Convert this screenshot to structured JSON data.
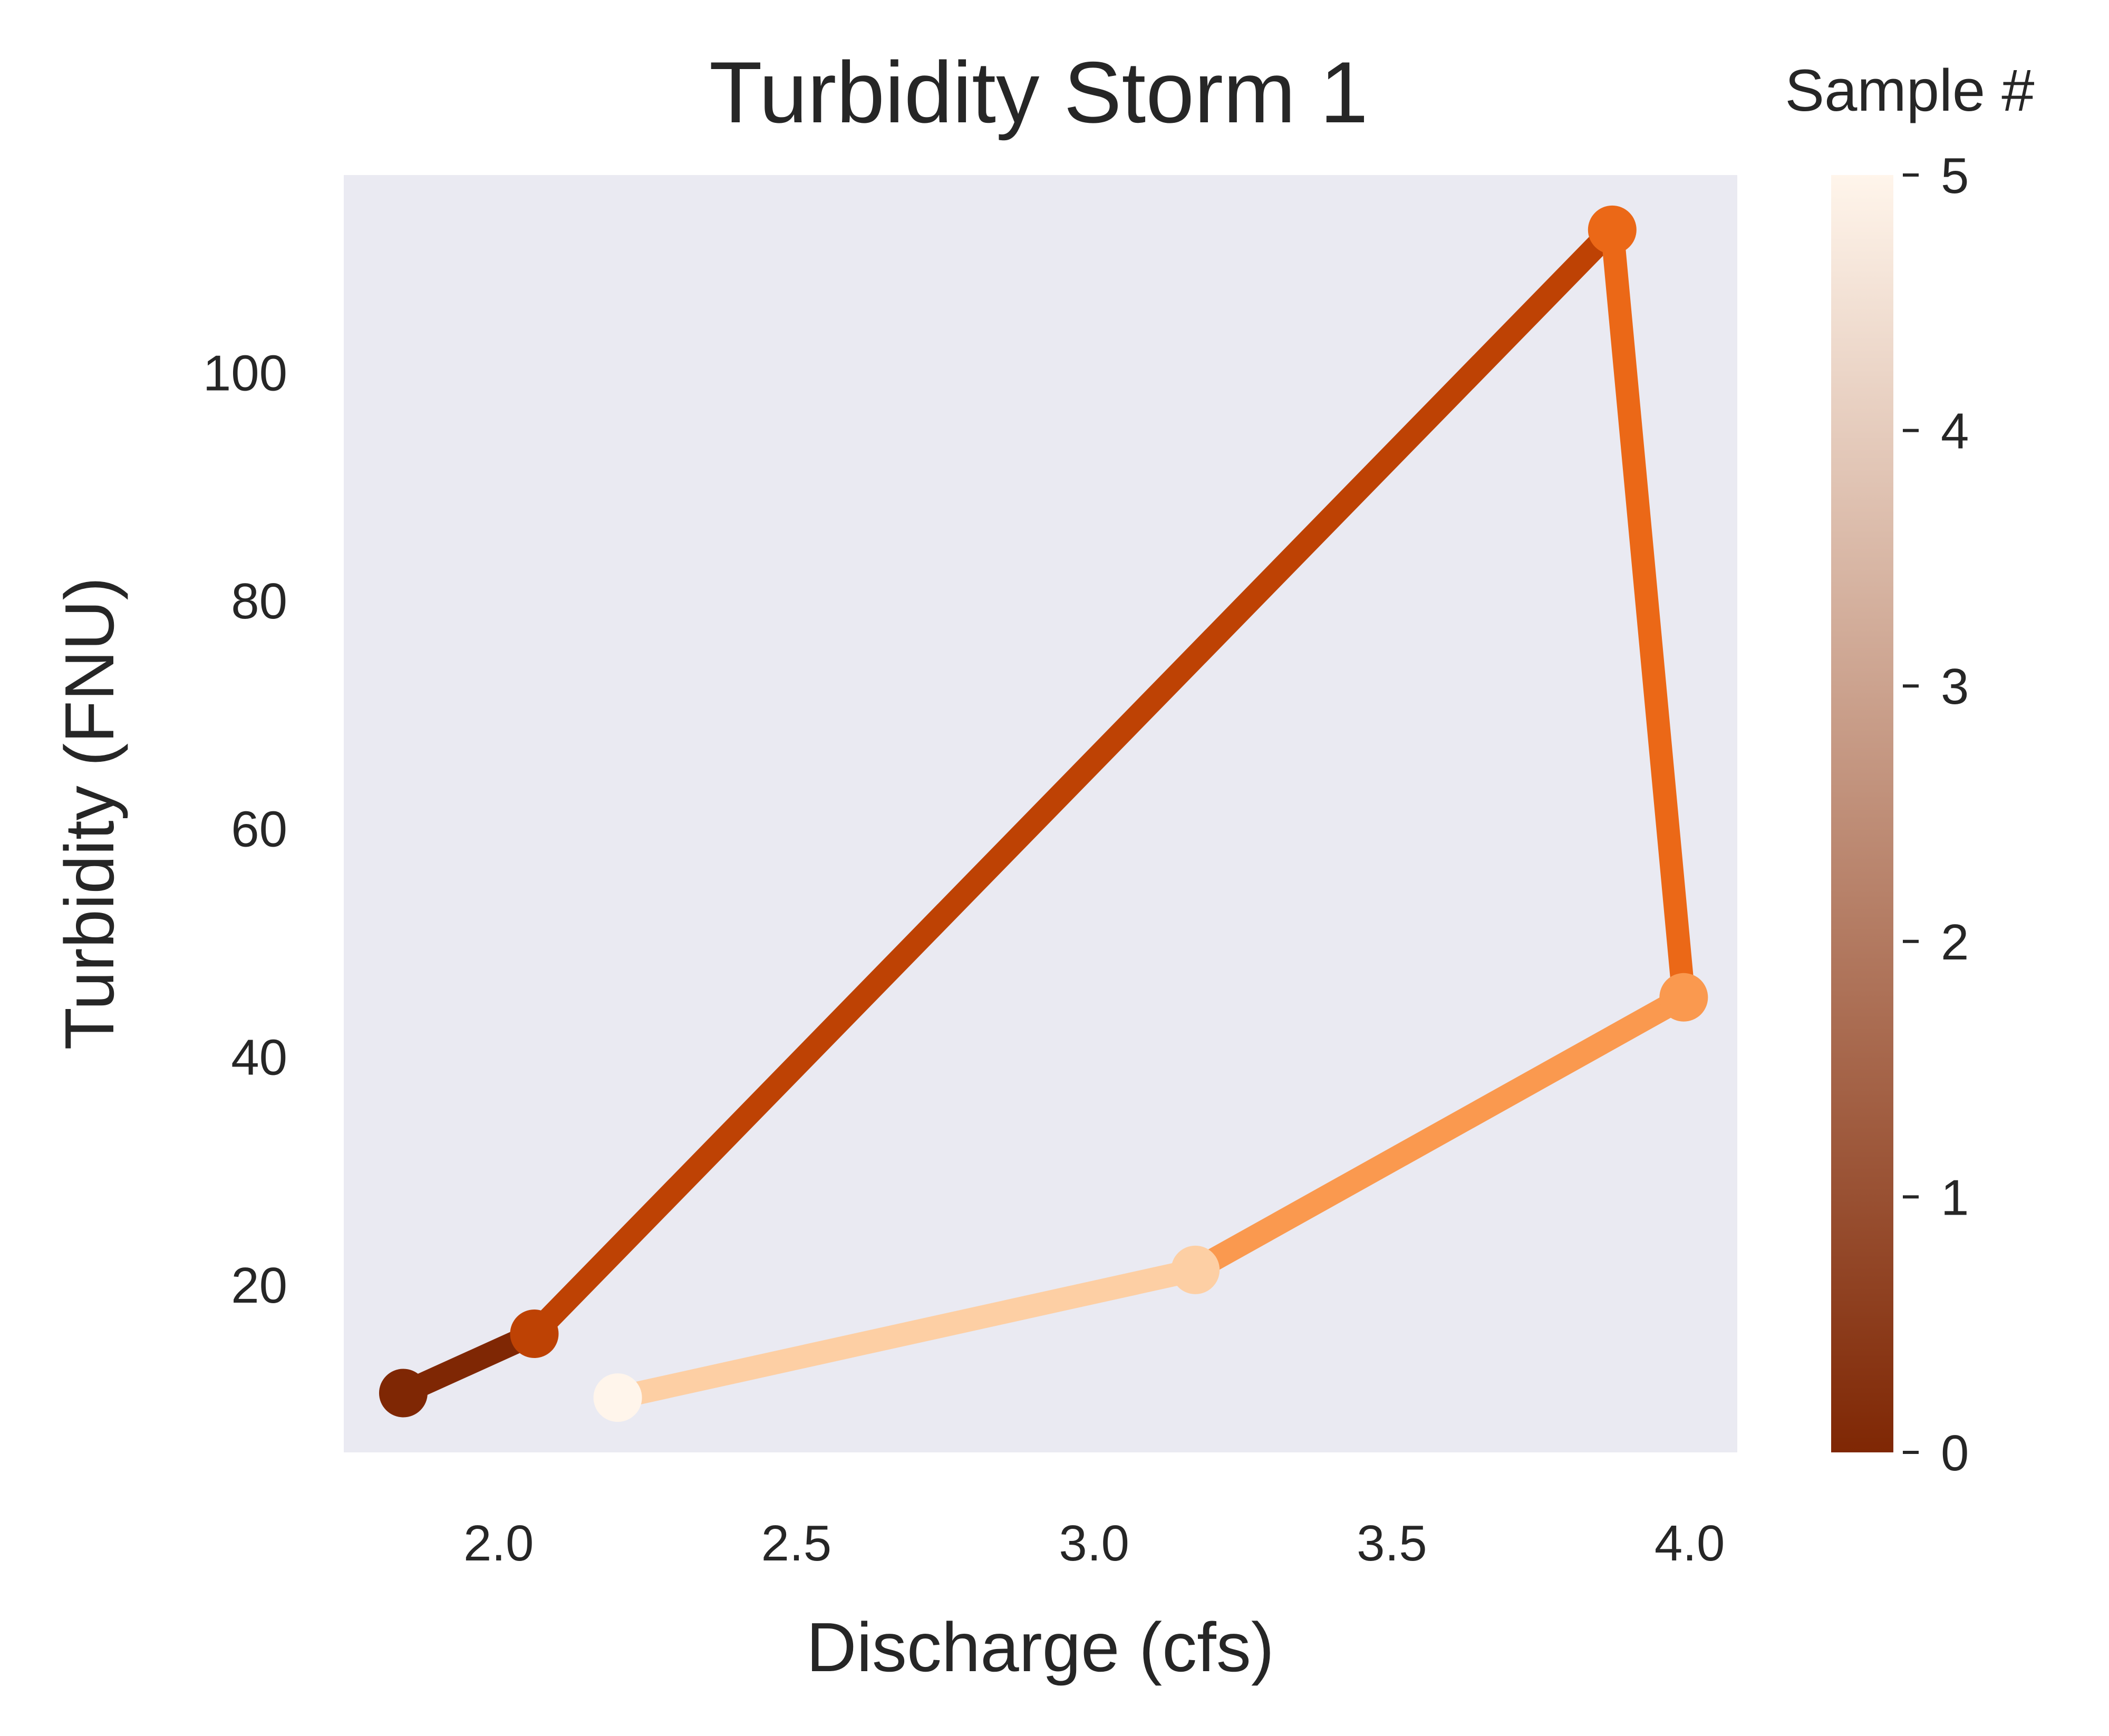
{
  "chart_data": {
    "type": "line",
    "title": "Turbidity Storm 1",
    "xlabel": "Discharge (cfs)",
    "ylabel": "Turbidity (FNU)",
    "xlim": [
      1.74,
      4.08
    ],
    "ylim": [
      5.3,
      117.3
    ],
    "x_ticks": [
      2.0,
      2.5,
      3.0,
      3.5,
      4.0
    ],
    "x_tick_labels": [
      "2.0",
      "2.5",
      "3.0",
      "3.5",
      "4.0"
    ],
    "y_ticks": [
      20,
      40,
      60,
      80,
      100
    ],
    "y_tick_labels": [
      "20",
      "40",
      "60",
      "80",
      "100"
    ],
    "grid": false,
    "plot_background": "#eaeaf2",
    "points": [
      {
        "sample": 0,
        "x": 1.84,
        "y": 10.5
      },
      {
        "sample": 1,
        "x": 2.06,
        "y": 15.7
      },
      {
        "sample": 2,
        "x": 3.87,
        "y": 112.5
      },
      {
        "sample": 3,
        "x": 3.99,
        "y": 45.2
      },
      {
        "sample": 4,
        "x": 3.17,
        "y": 21.3
      },
      {
        "sample": 5,
        "x": 2.2,
        "y": 10.1
      }
    ],
    "colorbar": {
      "title": "Sample #",
      "min": 0,
      "max": 5,
      "ticks": [
        0,
        1,
        2,
        3,
        4,
        5
      ],
      "tick_labels": [
        "0",
        "1",
        "2",
        "3",
        "4",
        "5"
      ],
      "colormap": "Oranges_r",
      "colors": [
        "#7f2704",
        "#b43c02",
        "#e4580a",
        "#f57f2a",
        "#fdab67",
        "#fdd8b3",
        "#fff5eb"
      ]
    }
  }
}
